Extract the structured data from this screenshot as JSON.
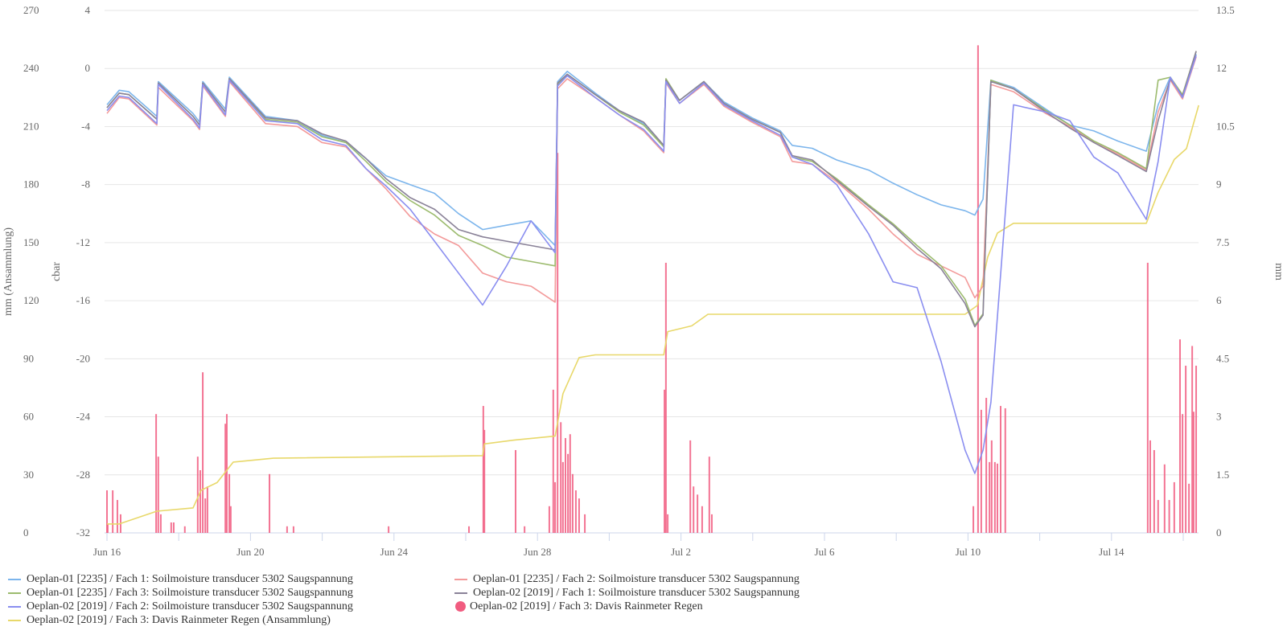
{
  "chart_data": {
    "type": "line",
    "x_unit": "days since Jun 16",
    "xlim": [
      0,
      30.45
    ],
    "x_tick_labels": [
      {
        "day": 0,
        "label": "Jun 16"
      },
      {
        "day": 4,
        "label": "Jun 20"
      },
      {
        "day": 8,
        "label": "Jun 24"
      },
      {
        "day": 12,
        "label": "Jun 28"
      },
      {
        "day": 16,
        "label": "Jul 2"
      },
      {
        "day": 20,
        "label": "Jul 6"
      },
      {
        "day": 24,
        "label": "Jul 10"
      },
      {
        "day": 28,
        "label": "Jul 14"
      }
    ],
    "x_minor_tick_step_days": 2,
    "axes": {
      "mm_cumulative": {
        "label": "mm (Ansammlung)",
        "ylim": [
          0,
          270
        ],
        "ticks": [
          "0",
          "30",
          "60",
          "90",
          "120",
          "150",
          "180",
          "210",
          "240",
          "270"
        ]
      },
      "cbar": {
        "label": "cbar",
        "ylim": [
          -32,
          4
        ],
        "ticks": [
          "-32",
          "-28",
          "-24",
          "-20",
          "-16",
          "-12",
          "-8",
          "-4",
          "0",
          "4"
        ]
      },
      "mm_rain": {
        "label": "mm",
        "ylim": [
          0,
          13.5
        ],
        "ticks": [
          "0",
          "1.5",
          "3",
          "4.5",
          "6",
          "7.5",
          "9",
          "10.5",
          "12",
          "13.5"
        ]
      }
    },
    "grid": true,
    "legend_position": "bottom",
    "soil_x": [
      0,
      0.34,
      0.61,
      1.39,
      1.43,
      2.4,
      2.58,
      2.67,
      3.3,
      3.41,
      4.42,
      5.31,
      5.99,
      6.66,
      7.22,
      7.78,
      8.45,
      9.13,
      9.8,
      10.47,
      11.14,
      11.82,
      12.49,
      12.56,
      12.83,
      13.61,
      14.28,
      14.96,
      15.52,
      15.58,
      15.96,
      16.64,
      17.2,
      17.98,
      18.77,
      19.1,
      19.66,
      20.34,
      21.23,
      21.91,
      22.58,
      23.25,
      23.92,
      24.19,
      24.42,
      24.64,
      25.27,
      26.17,
      26.84,
      27.51,
      28.18,
      28.97,
      29.3,
      29.64,
      29.98,
      30.36
    ],
    "series": [
      {
        "name": "Oeplan-01 [2235] / Fach 1: Soilmoisture transducer 5302 Saugspannung",
        "axis": "cbar",
        "kind": "line",
        "color": "#7cb5ec",
        "values": [
          -2.5,
          -1.5,
          -1.6,
          -3.3,
          -0.9,
          -3.1,
          -3.7,
          -0.9,
          -2.8,
          -0.6,
          -3.3,
          -3.6,
          -4.6,
          -5.1,
          -6.2,
          -7.4,
          -8.0,
          -8.6,
          -10.0,
          -11.1,
          -10.8,
          -10.5,
          -12.2,
          -0.9,
          -0.2,
          -1.7,
          -2.9,
          -3.8,
          -5.3,
          -0.8,
          -2.2,
          -0.9,
          -2.3,
          -3.4,
          -4.3,
          -5.3,
          -5.5,
          -6.3,
          -7.0,
          -7.9,
          -8.7,
          -9.4,
          -9.8,
          -10.1,
          -9.0,
          -0.8,
          -1.3,
          -2.8,
          -3.9,
          -4.3,
          -5.0,
          -5.7,
          -2.5,
          -0.6,
          -1.9,
          1.0
        ]
      },
      {
        "name": "Oeplan-01 [2235] / Fach 2: Soilmoisture transducer 5302 Saugspannung",
        "axis": "cbar",
        "kind": "line",
        "color": "#f39a9a",
        "values": [
          -3.1,
          -2.0,
          -2.1,
          -3.9,
          -1.3,
          -3.6,
          -4.2,
          -1.2,
          -3.3,
          -0.9,
          -3.8,
          -4.0,
          -5.1,
          -5.4,
          -6.9,
          -8.3,
          -10.2,
          -11.4,
          -12.2,
          -14.1,
          -14.7,
          -15.0,
          -16.1,
          -1.4,
          -0.7,
          -2.0,
          -3.2,
          -4.3,
          -5.8,
          -1.0,
          -2.4,
          -1.1,
          -2.6,
          -3.7,
          -4.7,
          -6.4,
          -6.6,
          -7.8,
          -9.7,
          -11.4,
          -12.8,
          -13.6,
          -14.4,
          -15.8,
          -15.0,
          -1.1,
          -1.6,
          -3.1,
          -4.0,
          -5.1,
          -5.9,
          -7.0,
          -3.0,
          -0.8,
          -2.1,
          0.8
        ]
      },
      {
        "name": "Oeplan-01 [2235] / Fach 3: Soilmoisture transducer 5302 Saugspannung",
        "axis": "cbar",
        "kind": "line",
        "color": "#9cbb6e",
        "values": [
          -2.7,
          -1.7,
          -1.8,
          -3.5,
          -1.0,
          -3.3,
          -3.9,
          -1.0,
          -3.0,
          -0.7,
          -3.5,
          -3.7,
          -4.7,
          -5.1,
          -6.4,
          -7.8,
          -9.1,
          -10.1,
          -11.5,
          -12.2,
          -13.0,
          -13.3,
          -13.6,
          -1.1,
          -0.4,
          -1.8,
          -3.0,
          -3.9,
          -5.4,
          -0.7,
          -2.2,
          -0.9,
          -2.4,
          -3.5,
          -4.4,
          -6.1,
          -6.4,
          -7.6,
          -9.4,
          -10.7,
          -12.2,
          -13.6,
          -15.9,
          -17.7,
          -16.9,
          -0.8,
          -1.4,
          -2.9,
          -3.9,
          -5.0,
          -5.8,
          -6.9,
          -0.8,
          -0.6,
          -1.8,
          1.2
        ]
      },
      {
        "name": "Oeplan-02 [2019] / Fach 1: Soilmoisture transducer 5302 Saugspannung",
        "axis": "cbar",
        "kind": "line",
        "color": "#8a8298",
        "values": [
          -2.7,
          -1.7,
          -1.8,
          -3.5,
          -1.0,
          -3.3,
          -3.9,
          -1.0,
          -3.0,
          -0.7,
          -3.4,
          -3.6,
          -4.5,
          -5.0,
          -6.2,
          -7.6,
          -8.9,
          -9.7,
          -11.1,
          -11.6,
          -11.9,
          -12.2,
          -12.5,
          -1.0,
          -0.4,
          -1.8,
          -2.9,
          -3.7,
          -5.3,
          -0.8,
          -2.2,
          -0.9,
          -2.4,
          -3.5,
          -4.4,
          -6.0,
          -6.3,
          -7.7,
          -9.5,
          -10.8,
          -12.4,
          -13.8,
          -16.2,
          -17.8,
          -17.0,
          -0.9,
          -1.4,
          -3.0,
          -4.1,
          -5.1,
          -6.0,
          -7.1,
          -3.6,
          -0.7,
          -1.9,
          1.2
        ]
      },
      {
        "name": "Oeplan-02 [2019] / Fach 2: Soilmoisture transducer 5302 Saugspannung",
        "axis": "cbar",
        "kind": "line",
        "color": "#8a8ef0",
        "values": [
          -2.9,
          -1.9,
          -2.0,
          -3.8,
          -1.1,
          -3.5,
          -4.1,
          -1.1,
          -3.2,
          -0.8,
          -3.6,
          -3.8,
          -4.9,
          -5.3,
          -6.9,
          -8.1,
          -9.7,
          -11.9,
          -14.1,
          -16.3,
          -13.6,
          -10.5,
          -12.7,
          -1.2,
          -0.5,
          -2.0,
          -3.2,
          -4.2,
          -5.7,
          -0.9,
          -2.4,
          -1.0,
          -2.5,
          -3.6,
          -4.6,
          -6.1,
          -6.6,
          -8.0,
          -11.4,
          -14.7,
          -15.1,
          -20.2,
          -26.3,
          -27.9,
          -26.3,
          -23.0,
          -2.5,
          -3.0,
          -3.6,
          -6.1,
          -7.2,
          -10.4,
          -6.4,
          -0.6,
          -2.0,
          0.9
        ]
      },
      {
        "name": "Oeplan-02 [2019] / Fach 3: Davis Rainmeter Regen",
        "axis": "mm_rain",
        "kind": "bar",
        "color": "#f15c80",
        "points": [
          [
            0.0,
            1.1
          ],
          [
            0.02,
            0.23
          ],
          [
            0.16,
            1.1
          ],
          [
            0.29,
            0.85
          ],
          [
            0.38,
            0.48
          ],
          [
            1.37,
            3.07
          ],
          [
            1.43,
            1.97
          ],
          [
            1.5,
            0.48
          ],
          [
            1.79,
            0.27
          ],
          [
            1.86,
            0.27
          ],
          [
            2.17,
            0.17
          ],
          [
            2.53,
            1.97
          ],
          [
            2.6,
            1.62
          ],
          [
            2.67,
            4.15
          ],
          [
            2.74,
            0.89
          ],
          [
            2.8,
            1.2
          ],
          [
            3.3,
            2.82
          ],
          [
            3.34,
            3.07
          ],
          [
            3.41,
            1.52
          ],
          [
            3.45,
            0.69
          ],
          [
            4.53,
            1.52
          ],
          [
            5.02,
            0.17
          ],
          [
            5.2,
            0.17
          ],
          [
            7.85,
            0.17
          ],
          [
            10.09,
            0.17
          ],
          [
            10.49,
            3.28
          ],
          [
            10.52,
            2.66
          ],
          [
            11.39,
            2.14
          ],
          [
            11.64,
            0.17
          ],
          [
            12.33,
            0.69
          ],
          [
            12.44,
            3.7
          ],
          [
            12.49,
            1.31
          ],
          [
            12.56,
            9.82
          ],
          [
            12.65,
            2.86
          ],
          [
            12.71,
            1.83
          ],
          [
            12.78,
            2.45
          ],
          [
            12.85,
            2.04
          ],
          [
            12.91,
            2.55
          ],
          [
            12.98,
            1.52
          ],
          [
            13.07,
            1.1
          ],
          [
            13.16,
            0.89
          ],
          [
            13.32,
            0.48
          ],
          [
            15.54,
            3.7
          ],
          [
            15.58,
            6.98
          ],
          [
            15.63,
            0.48
          ],
          [
            16.26,
            2.39
          ],
          [
            16.35,
            1.2
          ],
          [
            16.46,
            0.99
          ],
          [
            16.59,
            0.69
          ],
          [
            16.79,
            1.97
          ],
          [
            16.86,
            0.48
          ],
          [
            24.15,
            0.69
          ],
          [
            24.28,
            12.6
          ],
          [
            24.37,
            3.18
          ],
          [
            24.51,
            3.49
          ],
          [
            24.6,
            1.83
          ],
          [
            24.66,
            2.39
          ],
          [
            24.75,
            1.83
          ],
          [
            24.82,
            1.79
          ],
          [
            24.91,
            3.28
          ],
          [
            25.04,
            3.22
          ],
          [
            29.01,
            6.98
          ],
          [
            29.08,
            2.39
          ],
          [
            29.19,
            2.14
          ],
          [
            29.3,
            0.85
          ],
          [
            29.48,
            1.77
          ],
          [
            29.61,
            0.85
          ],
          [
            29.75,
            1.31
          ],
          [
            29.91,
            5.0
          ],
          [
            29.98,
            3.07
          ],
          [
            30.07,
            4.32
          ],
          [
            30.16,
            1.27
          ],
          [
            30.25,
            4.83
          ],
          [
            30.29,
            3.13
          ],
          [
            30.36,
            4.32
          ]
        ]
      },
      {
        "name": "Oeplan-02 [2019] / Fach 3: Davis Rainmeter Regen (Ansammlung)",
        "axis": "mm_cumulative",
        "kind": "line",
        "color": "#e8d86a",
        "points": [
          [
            0,
            4.6
          ],
          [
            0.34,
            4.6
          ],
          [
            1.39,
            11.2
          ],
          [
            2.4,
            12.9
          ],
          [
            2.62,
            22
          ],
          [
            3.07,
            26
          ],
          [
            3.52,
            36.6
          ],
          [
            4.64,
            38.6
          ],
          [
            10.47,
            39.9
          ],
          [
            10.52,
            46
          ],
          [
            11.37,
            48
          ],
          [
            12.49,
            50
          ],
          [
            12.71,
            72
          ],
          [
            13.16,
            90.6
          ],
          [
            13.61,
            92
          ],
          [
            15.52,
            92
          ],
          [
            15.63,
            104
          ],
          [
            16.3,
            107
          ],
          [
            16.75,
            113
          ],
          [
            23.92,
            113
          ],
          [
            24.26,
            117.5
          ],
          [
            24.55,
            142.5
          ],
          [
            24.82,
            155
          ],
          [
            25.27,
            160
          ],
          [
            28.97,
            160
          ],
          [
            29.3,
            176
          ],
          [
            29.75,
            193
          ],
          [
            30.09,
            198.6
          ],
          [
            30.43,
            221
          ]
        ]
      }
    ],
    "legend_order": [
      0,
      1,
      2,
      3,
      4,
      5,
      6
    ]
  }
}
